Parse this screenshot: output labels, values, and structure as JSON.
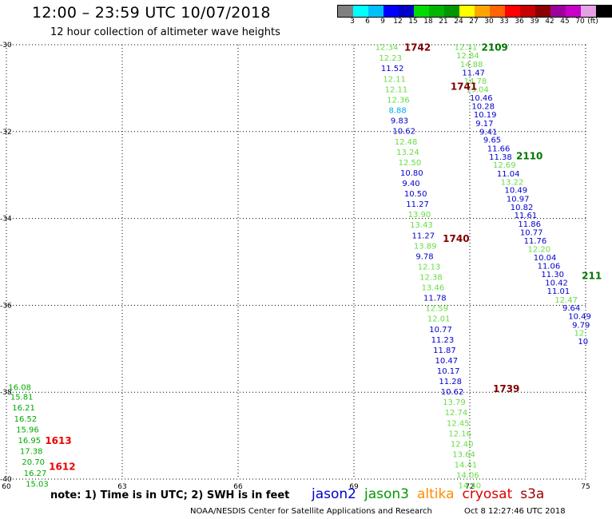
{
  "header": {
    "title": "12:00 – 23:59 UTC 10/07/2018",
    "subtitle": "12 hour collection of altimeter wave heights"
  },
  "colorbar": {
    "colors": [
      "#808080",
      "#00ffff",
      "#00bfff",
      "#0000ff",
      "#0000c8",
      "#00dc00",
      "#00b400",
      "#009600",
      "#ffff00",
      "#ffa500",
      "#ff6400",
      "#ff0000",
      "#c80000",
      "#8c0000",
      "#9c009c",
      "#c800c8",
      "#e6a0e6",
      "#000000"
    ],
    "labels": [
      "3",
      "6",
      "9",
      "12",
      "15",
      "18",
      "21",
      "24",
      "27",
      "30",
      "33",
      "36",
      "39",
      "42",
      "45",
      "70",
      "(ft)"
    ]
  },
  "footer": {
    "note": "note:  1) Time is in UTC;  2) SWH is in feet",
    "credit": "NOAA/NESDIS Center for Satellite Applications and Research",
    "timestamp": "Oct  8 12:27:46 UTC 2018"
  },
  "legend": [
    {
      "name": "jason2",
      "color": "#0000cc"
    },
    {
      "name": "jason3",
      "color": "#009900"
    },
    {
      "name": "altika",
      "color": "#ff8c00"
    },
    {
      "name": "cryosat",
      "color": "#dd0000"
    },
    {
      "name": "s3a",
      "color": "#990000"
    }
  ],
  "chart_data": {
    "type": "scatter",
    "title": "12:00 – 23:59 UTC 10/07/2018",
    "subtitle": "12 hour collection of altimeter wave heights",
    "xlim": [
      60,
      75
    ],
    "ylim": [
      -40,
      -30
    ],
    "x_ticks": [
      "60",
      "63",
      "66",
      "69",
      "72",
      "75"
    ],
    "y_ticks": [
      "-30",
      "-32",
      "-34",
      "-36",
      "-38",
      "-40"
    ],
    "grid": true,
    "colors": {
      "jason2": "#0000cc",
      "jason3_light": "#66dd44",
      "jason3_dark": "#00aa00",
      "cyan": "#00aaee",
      "time_dark": "#800000",
      "time_green": "#007700",
      "time_red": "#ee0000"
    },
    "time_labels": [
      {
        "text": "1742",
        "x": 70.3,
        "y": -30.05,
        "color": "time_dark"
      },
      {
        "text": "2109",
        "x": 72.3,
        "y": -30.05,
        "color": "time_green"
      },
      {
        "text": "1741",
        "x": 71.5,
        "y": -30.95,
        "color": "time_dark"
      },
      {
        "text": "2110",
        "x": 73.2,
        "y": -32.55,
        "color": "time_green"
      },
      {
        "text": "1740",
        "x": 71.3,
        "y": -34.45,
        "color": "time_dark"
      },
      {
        "text": "211",
        "x": 74.9,
        "y": -35.3,
        "color": "time_green"
      },
      {
        "text": "1739",
        "x": 72.6,
        "y": -37.9,
        "color": "time_dark"
      },
      {
        "text": "1613",
        "x": 61.0,
        "y": -39.1,
        "color": "time_red"
      },
      {
        "text": "1612",
        "x": 61.1,
        "y": -39.7,
        "color": "time_red"
      }
    ],
    "tracks": [
      {
        "name": "track-1742",
        "points": [
          {
            "lon": 69.55,
            "lat": -30.05,
            "v": "12.34",
            "c": "jason3_light"
          },
          {
            "lon": 69.65,
            "lat": -30.29,
            "v": "12.23",
            "c": "jason3_light"
          },
          {
            "lon": 69.7,
            "lat": -30.53,
            "v": "11.52",
            "c": "jason2"
          },
          {
            "lon": 69.75,
            "lat": -30.78,
            "v": "12.11",
            "c": "jason3_light"
          },
          {
            "lon": 69.8,
            "lat": -31.02,
            "v": "12.11",
            "c": "jason3_light"
          },
          {
            "lon": 69.85,
            "lat": -31.26,
            "v": "12.36",
            "c": "jason3_light"
          },
          {
            "lon": 69.9,
            "lat": -31.5,
            "v": "8.88",
            "c": "cyan"
          },
          {
            "lon": 69.95,
            "lat": -31.74,
            "v": "9.83",
            "c": "jason2"
          },
          {
            "lon": 70.0,
            "lat": -31.98,
            "v": "10.62",
            "c": "jason2"
          },
          {
            "lon": 70.05,
            "lat": -32.22,
            "v": "12.48",
            "c": "jason3_light"
          },
          {
            "lon": 70.1,
            "lat": -32.46,
            "v": "13.24",
            "c": "jason3_light"
          },
          {
            "lon": 70.15,
            "lat": -32.7,
            "v": "12.50",
            "c": "jason3_light"
          },
          {
            "lon": 70.2,
            "lat": -32.94,
            "v": "10.80",
            "c": "jason2"
          },
          {
            "lon": 70.25,
            "lat": -33.18,
            "v": "9.40",
            "c": "jason2"
          },
          {
            "lon": 70.3,
            "lat": -33.42,
            "v": "10.50",
            "c": "jason2"
          },
          {
            "lon": 70.35,
            "lat": -33.66,
            "v": "11.27",
            "c": "jason2"
          },
          {
            "lon": 70.4,
            "lat": -33.9,
            "v": "13.90",
            "c": "jason3_light"
          },
          {
            "lon": 70.45,
            "lat": -34.14,
            "v": "13.43",
            "c": "jason3_light"
          },
          {
            "lon": 70.5,
            "lat": -34.38,
            "v": "11.27",
            "c": "jason2"
          },
          {
            "lon": 70.55,
            "lat": -34.62,
            "v": "13.89",
            "c": "jason3_light"
          },
          {
            "lon": 70.6,
            "lat": -34.86,
            "v": "9.78",
            "c": "jason2"
          },
          {
            "lon": 70.65,
            "lat": -35.1,
            "v": "12.13",
            "c": "jason3_light"
          },
          {
            "lon": 70.7,
            "lat": -35.34,
            "v": "12.38",
            "c": "jason3_light"
          },
          {
            "lon": 70.75,
            "lat": -35.58,
            "v": "13.46",
            "c": "jason3_light"
          },
          {
            "lon": 70.8,
            "lat": -35.82,
            "v": "11.78",
            "c": "jason2"
          },
          {
            "lon": 70.85,
            "lat": -36.06,
            "v": "12.59",
            "c": "jason3_light"
          },
          {
            "lon": 70.9,
            "lat": -36.3,
            "v": "12.01",
            "c": "jason3_light"
          },
          {
            "lon": 70.95,
            "lat": -36.54,
            "v": "10.77",
            "c": "jason2"
          },
          {
            "lon": 71.0,
            "lat": -36.78,
            "v": "11.23",
            "c": "jason2"
          },
          {
            "lon": 71.05,
            "lat": -37.02,
            "v": "11.87",
            "c": "jason2"
          },
          {
            "lon": 71.1,
            "lat": -37.26,
            "v": "10.47",
            "c": "jason2"
          },
          {
            "lon": 71.15,
            "lat": -37.5,
            "v": "10.17",
            "c": "jason2"
          },
          {
            "lon": 71.2,
            "lat": -37.74,
            "v": "11.28",
            "c": "jason2"
          },
          {
            "lon": 71.25,
            "lat": -37.98,
            "v": "10.62",
            "c": "jason2"
          },
          {
            "lon": 71.3,
            "lat": -38.22,
            "v": "13.79",
            "c": "jason3_light"
          },
          {
            "lon": 71.35,
            "lat": -38.46,
            "v": "12.74",
            "c": "jason3_light"
          },
          {
            "lon": 71.4,
            "lat": -38.7,
            "v": "12.45",
            "c": "jason3_light"
          },
          {
            "lon": 71.45,
            "lat": -38.94,
            "v": "12.16",
            "c": "jason3_light"
          },
          {
            "lon": 71.5,
            "lat": -39.18,
            "v": "12.40",
            "c": "jason3_light"
          },
          {
            "lon": 71.55,
            "lat": -39.42,
            "v": "13.64",
            "c": "jason3_light"
          },
          {
            "lon": 71.6,
            "lat": -39.66,
            "v": "14.41",
            "c": "jason3_light"
          },
          {
            "lon": 71.65,
            "lat": -39.9,
            "v": "14.06",
            "c": "jason3_light"
          },
          {
            "lon": 71.7,
            "lat": -40.14,
            "v": "14.40",
            "c": "jason3_light"
          }
        ]
      },
      {
        "name": "track-2109",
        "points": [
          {
            "lon": 71.6,
            "lat": -30.05,
            "v": "12.31",
            "c": "jason3_light"
          },
          {
            "lon": 71.65,
            "lat": -30.24,
            "v": "12.84",
            "c": "jason3_light"
          },
          {
            "lon": 71.75,
            "lat": -30.44,
            "v": "14.88",
            "c": "jason3_light"
          },
          {
            "lon": 71.8,
            "lat": -30.63,
            "v": "11.47",
            "c": "jason2"
          },
          {
            "lon": 71.85,
            "lat": -30.83,
            "v": "14.78",
            "c": "jason3_light"
          },
          {
            "lon": 71.9,
            "lat": -31.02,
            "v": "13.04",
            "c": "jason3_light"
          },
          {
            "lon": 72.0,
            "lat": -31.21,
            "v": "10.46",
            "c": "jason2"
          },
          {
            "lon": 72.05,
            "lat": -31.41,
            "v": "10.28",
            "c": "jason2"
          },
          {
            "lon": 72.1,
            "lat": -31.6,
            "v": "10.19",
            "c": "jason2"
          },
          {
            "lon": 72.15,
            "lat": -31.8,
            "v": "9.17",
            "c": "jason2"
          },
          {
            "lon": 72.25,
            "lat": -31.99,
            "v": "9.41",
            "c": "jason2"
          },
          {
            "lon": 72.35,
            "lat": -32.18,
            "v": "9.65",
            "c": "jason2"
          },
          {
            "lon": 72.45,
            "lat": -32.38,
            "v": "11.66",
            "c": "jason2"
          },
          {
            "lon": 72.5,
            "lat": -32.57,
            "v": "11.38",
            "c": "jason2"
          },
          {
            "lon": 72.6,
            "lat": -32.76,
            "v": "12.69",
            "c": "jason3_light"
          },
          {
            "lon": 72.7,
            "lat": -32.96,
            "v": "11.04",
            "c": "jason2"
          },
          {
            "lon": 72.8,
            "lat": -33.15,
            "v": "13.22",
            "c": "jason3_light"
          },
          {
            "lon": 72.9,
            "lat": -33.34,
            "v": "10.49",
            "c": "jason2"
          },
          {
            "lon": 72.95,
            "lat": -33.54,
            "v": "10.97",
            "c": "jason2"
          },
          {
            "lon": 73.05,
            "lat": -33.73,
            "v": "10.82",
            "c": "jason2"
          },
          {
            "lon": 73.15,
            "lat": -33.92,
            "v": "11.61",
            "c": "jason2"
          },
          {
            "lon": 73.25,
            "lat": -34.12,
            "v": "11.86",
            "c": "jason2"
          },
          {
            "lon": 73.3,
            "lat": -34.31,
            "v": "10.77",
            "c": "jason2"
          },
          {
            "lon": 73.4,
            "lat": -34.5,
            "v": "11.76",
            "c": "jason2"
          },
          {
            "lon": 73.5,
            "lat": -34.7,
            "v": "12.20",
            "c": "jason3_light"
          },
          {
            "lon": 73.65,
            "lat": -34.89,
            "v": "10.04",
            "c": "jason2"
          },
          {
            "lon": 73.75,
            "lat": -35.08,
            "v": "11.06",
            "c": "jason2"
          },
          {
            "lon": 73.85,
            "lat": -35.28,
            "v": "11.30",
            "c": "jason2"
          },
          {
            "lon": 73.95,
            "lat": -35.47,
            "v": "10.42",
            "c": "jason2"
          },
          {
            "lon": 74.0,
            "lat": -35.66,
            "v": "11.01",
            "c": "jason2"
          },
          {
            "lon": 74.2,
            "lat": -35.86,
            "v": "12.47",
            "c": "jason3_light"
          },
          {
            "lon": 74.4,
            "lat": -36.05,
            "v": "9.64",
            "c": "jason2"
          },
          {
            "lon": 74.55,
            "lat": -36.24,
            "v": "10.49",
            "c": "jason2"
          },
          {
            "lon": 74.65,
            "lat": -36.44,
            "v": "9.79",
            "c": "jason2"
          },
          {
            "lon": 74.7,
            "lat": -36.63,
            "v": "12.",
            "c": "jason3_light"
          },
          {
            "lon": 74.8,
            "lat": -36.82,
            "v": "10",
            "c": "jason2"
          }
        ]
      },
      {
        "name": "track-1613",
        "points": [
          {
            "lon": 60.05,
            "lat": -37.88,
            "v": "16.08",
            "c": "jason3_dark"
          },
          {
            "lon": 60.1,
            "lat": -38.1,
            "v": "15.81",
            "c": "jason3_dark"
          },
          {
            "lon": 60.15,
            "lat": -38.35,
            "v": "16.21",
            "c": "jason3_dark"
          },
          {
            "lon": 60.2,
            "lat": -38.6,
            "v": "16.52",
            "c": "jason3_dark"
          },
          {
            "lon": 60.25,
            "lat": -38.85,
            "v": "15.96",
            "c": "jason3_dark"
          },
          {
            "lon": 60.3,
            "lat": -39.1,
            "v": "16.95",
            "c": "jason3_dark"
          },
          {
            "lon": 60.35,
            "lat": -39.35,
            "v": "17.38",
            "c": "jason3_dark"
          },
          {
            "lon": 60.4,
            "lat": -39.6,
            "v": "20.70",
            "c": "jason3_dark"
          },
          {
            "lon": 60.45,
            "lat": -39.85,
            "v": "16.27",
            "c": "jason3_dark"
          },
          {
            "lon": 60.5,
            "lat": -40.1,
            "v": "15.03",
            "c": "jason3_dark"
          }
        ]
      }
    ]
  }
}
